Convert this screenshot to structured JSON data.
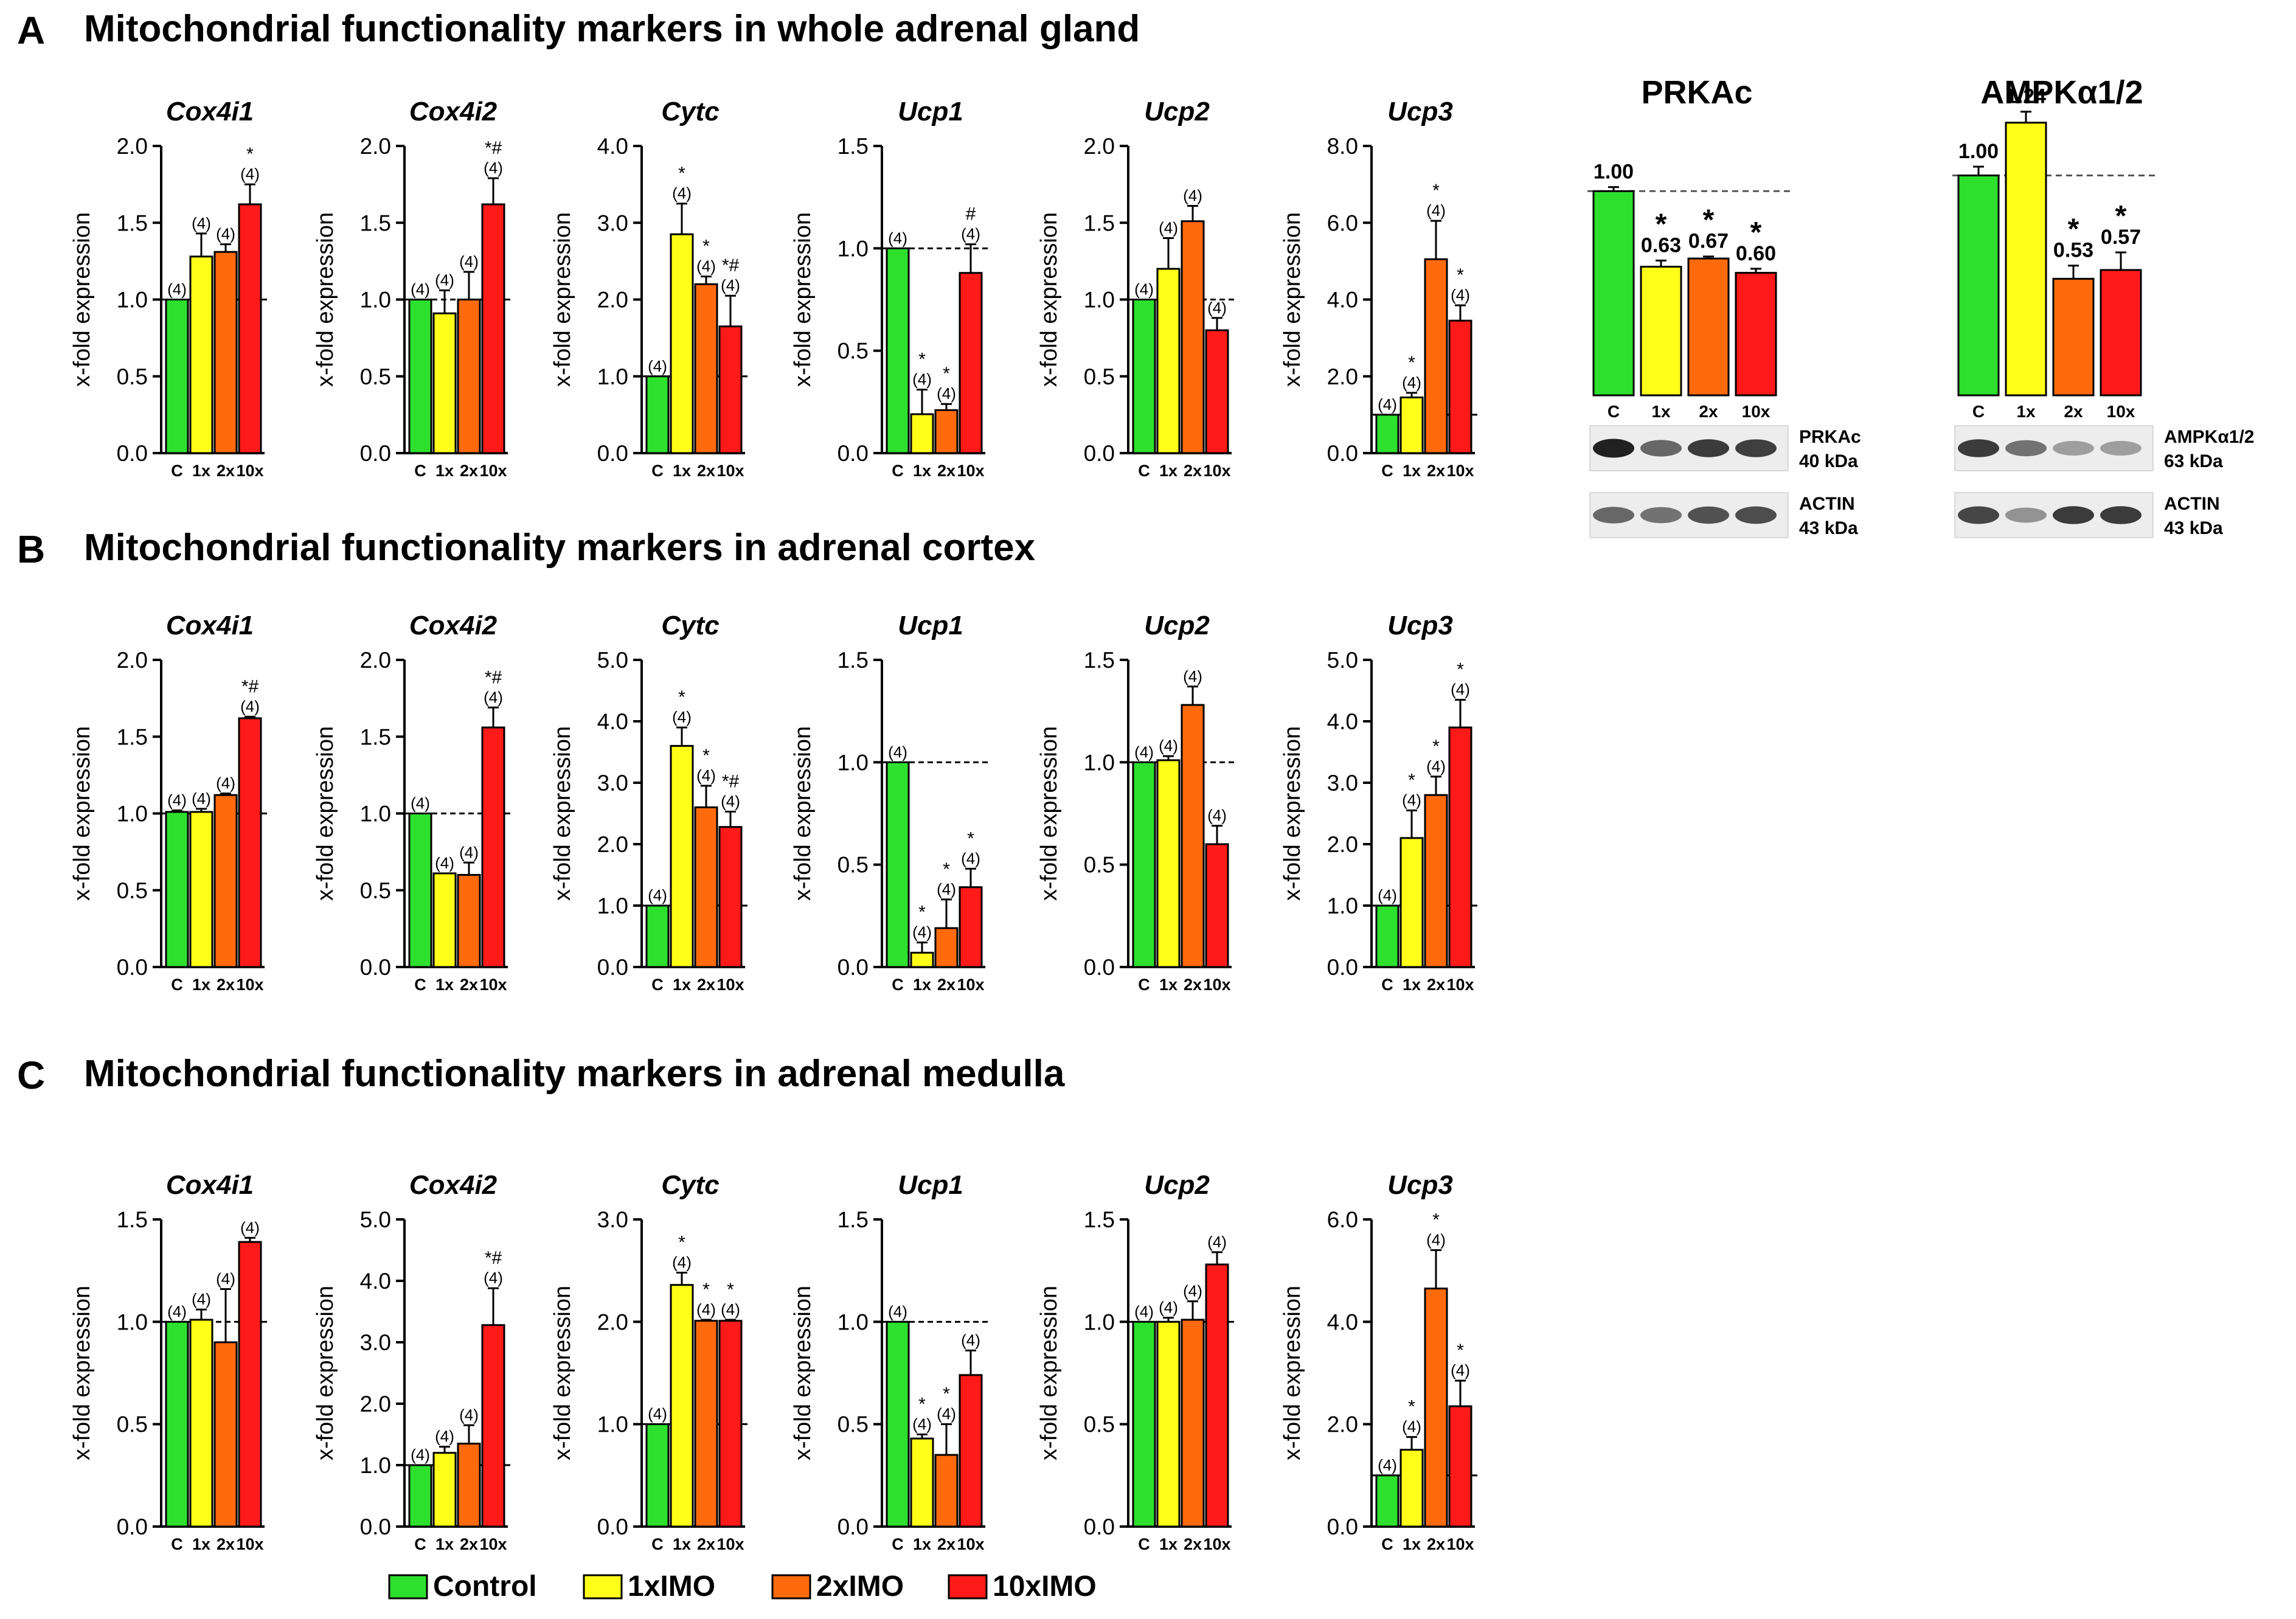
{
  "colors": {
    "C": "#2ee02e",
    "1x": "#ffff1a",
    "2x": "#ff6a0d",
    "10x": "#ff1a1a"
  },
  "sections": [
    {
      "letter": "A",
      "title": "Mitochondrial functionality markers in whole adrenal gland"
    },
    {
      "letter": "B",
      "title": "Mitochondrial functionality markers in adrenal cortex"
    },
    {
      "letter": "C",
      "title": "Mitochondrial functionality markers in adrenal medulla"
    }
  ],
  "legend": [
    {
      "label": "Control",
      "key": "C"
    },
    {
      "label": "1xIMO",
      "key": "1x"
    },
    {
      "label": "2xIMO",
      "key": "2x"
    },
    {
      "label": "10xIMO",
      "key": "10x"
    }
  ],
  "chart_data": [
    {
      "section": "A",
      "type": "bar",
      "title": "Cox4i1",
      "ylabel": "x-fold expression",
      "categories": [
        "C",
        "1x",
        "2x",
        "10x"
      ],
      "values": [
        1.0,
        1.28,
        1.31,
        1.62
      ],
      "errors": [
        0.0,
        0.15,
        0.05,
        0.13
      ],
      "n": [
        "(4)",
        "(4)",
        "(4)",
        "(4)"
      ],
      "marks": [
        "",
        "",
        "",
        "*"
      ],
      "ylim": [
        0,
        2
      ],
      "ticks": [
        "0.0",
        "0.5",
        "1.0",
        "1.5",
        "2.0"
      ],
      "reference": 1.0
    },
    {
      "section": "A",
      "type": "bar",
      "title": "Cox4i2",
      "ylabel": "x-fold expression",
      "categories": [
        "C",
        "1x",
        "2x",
        "10x"
      ],
      "values": [
        1.0,
        0.91,
        1.0,
        1.62
      ],
      "errors": [
        0.0,
        0.15,
        0.18,
        0.17
      ],
      "n": [
        "(4)",
        "(4)",
        "(4)",
        "(4)"
      ],
      "marks": [
        "",
        "",
        "",
        "*#"
      ],
      "ylim": [
        0,
        2
      ],
      "ticks": [
        "0.0",
        "0.5",
        "1.0",
        "1.5",
        "2.0"
      ],
      "reference": 1.0
    },
    {
      "section": "A",
      "type": "bar",
      "title": "Cytc",
      "ylabel": "x-fold expression",
      "categories": [
        "C",
        "1x",
        "2x",
        "10x"
      ],
      "values": [
        1.0,
        2.85,
        2.2,
        1.65
      ],
      "errors": [
        0.0,
        0.4,
        0.1,
        0.4
      ],
      "n": [
        "(4)",
        "(4)",
        "(4)",
        "(4)"
      ],
      "marks": [
        "",
        "*",
        "*",
        "*#"
      ],
      "ylim": [
        0,
        4
      ],
      "ticks": [
        "0.0",
        "1.0",
        "2.0",
        "3.0",
        "4.0"
      ],
      "reference": 1.0
    },
    {
      "section": "A",
      "type": "bar",
      "title": "Ucp1",
      "ylabel": "x-fold expression",
      "categories": [
        "C",
        "1x",
        "2x",
        "10x"
      ],
      "values": [
        1.0,
        0.19,
        0.21,
        0.88
      ],
      "errors": [
        0.0,
        0.12,
        0.03,
        0.14
      ],
      "n": [
        "(4)",
        "(4)",
        "(4)",
        "(4)"
      ],
      "marks": [
        "",
        "*",
        "*",
        "#"
      ],
      "ylim": [
        0,
        1.5
      ],
      "ticks": [
        "0.0",
        "0.5",
        "1.0",
        "1.5"
      ],
      "reference": 1.0
    },
    {
      "section": "A",
      "type": "bar",
      "title": "Ucp2",
      "ylabel": "x-fold expression",
      "categories": [
        "C",
        "1x",
        "2x",
        "10x"
      ],
      "values": [
        1.0,
        1.2,
        1.51,
        0.8
      ],
      "errors": [
        0.0,
        0.2,
        0.1,
        0.08
      ],
      "n": [
        "(4)",
        "(4)",
        "(4)",
        "(4)"
      ],
      "marks": [
        "",
        "",
        "",
        ""
      ],
      "ylim": [
        0,
        2
      ],
      "ticks": [
        "0.0",
        "0.5",
        "1.0",
        "1.5",
        "2.0"
      ],
      "reference": 1.0
    },
    {
      "section": "A",
      "type": "bar",
      "title": "Ucp3",
      "ylabel": "x-fold expression",
      "categories": [
        "C",
        "1x",
        "2x",
        "10x"
      ],
      "values": [
        1.0,
        1.45,
        5.05,
        3.45
      ],
      "errors": [
        0.0,
        0.12,
        1.0,
        0.4
      ],
      "n": [
        "(4)",
        "(4)",
        "(4)",
        "(4)"
      ],
      "marks": [
        "",
        "*",
        "*",
        "*"
      ],
      "ylim": [
        0,
        8
      ],
      "ticks": [
        "0.0",
        "2.0",
        "4.0",
        "6.0",
        "8.0"
      ],
      "reference": 1.0
    },
    {
      "section": "B",
      "type": "bar",
      "title": "Cox4i1",
      "ylabel": "x-fold expression",
      "categories": [
        "C",
        "1x",
        "2x",
        "10x"
      ],
      "values": [
        1.01,
        1.01,
        1.12,
        1.62
      ],
      "errors": [
        0.01,
        0.02,
        0.01,
        0.01
      ],
      "n": [
        "(4)",
        "(4)",
        "(4)",
        "(4)"
      ],
      "marks": [
        "",
        "",
        "",
        "*#"
      ],
      "ylim": [
        0,
        2
      ],
      "ticks": [
        "0.0",
        "0.5",
        "1.0",
        "1.5",
        "2.0"
      ],
      "reference": 1.0
    },
    {
      "section": "B",
      "type": "bar",
      "title": "Cox4i2",
      "ylabel": "x-fold expression",
      "categories": [
        "C",
        "1x",
        "2x",
        "10x"
      ],
      "values": [
        1.0,
        0.61,
        0.6,
        1.56
      ],
      "errors": [
        0.0,
        0.0,
        0.08,
        0.13
      ],
      "n": [
        "(4)",
        "(4)",
        "(4)",
        "(4)"
      ],
      "marks": [
        "",
        "",
        "",
        "*#"
      ],
      "ylim": [
        0,
        2
      ],
      "ticks": [
        "0.0",
        "0.5",
        "1.0",
        "1.5",
        "2.0"
      ],
      "reference": 1.0
    },
    {
      "section": "B",
      "type": "bar",
      "title": "Cytc",
      "ylabel": "x-fold expression",
      "categories": [
        "C",
        "1x",
        "2x",
        "10x"
      ],
      "values": [
        1.0,
        3.6,
        2.6,
        2.28
      ],
      "errors": [
        0.0,
        0.3,
        0.35,
        0.25
      ],
      "n": [
        "(4)",
        "(4)",
        "(4)",
        "(4)"
      ],
      "marks": [
        "",
        "*",
        "*",
        "*#"
      ],
      "ylim": [
        0,
        5
      ],
      "ticks": [
        "0.0",
        "1.0",
        "2.0",
        "3.0",
        "4.0",
        "5.0"
      ],
      "reference": 1.0
    },
    {
      "section": "B",
      "type": "bar",
      "title": "Ucp1",
      "ylabel": "x-fold expression",
      "categories": [
        "C",
        "1x",
        "2x",
        "10x"
      ],
      "values": [
        1.0,
        0.07,
        0.19,
        0.39
      ],
      "errors": [
        0.0,
        0.05,
        0.14,
        0.09
      ],
      "n": [
        "(4)",
        "(4)",
        "(4)",
        "(4)"
      ],
      "marks": [
        "",
        "*",
        "*",
        "*"
      ],
      "ylim": [
        0,
        1.5
      ],
      "ticks": [
        "0.0",
        "0.5",
        "1.0",
        "1.5"
      ],
      "reference": 1.0
    },
    {
      "section": "B",
      "type": "bar",
      "title": "Ucp2",
      "ylabel": "x-fold expression",
      "categories": [
        "C",
        "1x",
        "2x",
        "10x"
      ],
      "values": [
        1.0,
        1.01,
        1.28,
        0.6
      ],
      "errors": [
        0.0,
        0.02,
        0.09,
        0.09
      ],
      "n": [
        "(4)",
        "(4)",
        "(4)",
        "(4)"
      ],
      "marks": [
        "",
        "",
        "",
        ""
      ],
      "ylim": [
        0,
        1.5
      ],
      "ticks": [
        "0.0",
        "0.5",
        "1.0",
        "1.5"
      ],
      "reference": 1.0
    },
    {
      "section": "B",
      "type": "bar",
      "title": "Ucp3",
      "ylabel": "x-fold expression",
      "categories": [
        "C",
        "1x",
        "2x",
        "10x"
      ],
      "values": [
        1.0,
        2.1,
        2.8,
        3.9
      ],
      "errors": [
        0.0,
        0.45,
        0.3,
        0.45
      ],
      "n": [
        "(4)",
        "(4)",
        "(4)",
        "(4)"
      ],
      "marks": [
        "",
        "*",
        "*",
        "*"
      ],
      "ylim": [
        0,
        5
      ],
      "ticks": [
        "0.0",
        "1.0",
        "2.0",
        "3.0",
        "4.0",
        "5.0"
      ],
      "reference": 1.0
    },
    {
      "section": "C",
      "type": "bar",
      "title": "Cox4i1",
      "ylabel": "x-fold expression",
      "categories": [
        "C",
        "1x",
        "2x",
        "10x"
      ],
      "values": [
        1.0,
        1.01,
        0.9,
        1.39
      ],
      "errors": [
        0.0,
        0.05,
        0.26,
        0.02
      ],
      "n": [
        "(4)",
        "(4)",
        "(4)",
        "(4)"
      ],
      "marks": [
        "",
        "",
        "",
        ""
      ],
      "ylim": [
        0,
        1.5
      ],
      "ticks": [
        "0.0",
        "0.5",
        "1.0",
        "1.5"
      ],
      "reference": 1.0
    },
    {
      "section": "C",
      "type": "bar",
      "title": "Cox4i2",
      "ylabel": "x-fold expression",
      "categories": [
        "C",
        "1x",
        "2x",
        "10x"
      ],
      "values": [
        1.0,
        1.2,
        1.35,
        3.28
      ],
      "errors": [
        0.0,
        0.1,
        0.3,
        0.6
      ],
      "n": [
        "(4)",
        "(4)",
        "(4)",
        "(4)"
      ],
      "marks": [
        "",
        "",
        "",
        "*#"
      ],
      "ylim": [
        0,
        5
      ],
      "ticks": [
        "0.0",
        "1.0",
        "2.0",
        "3.0",
        "4.0",
        "5.0"
      ],
      "reference": 1.0
    },
    {
      "section": "C",
      "type": "bar",
      "title": "Cytc",
      "ylabel": "x-fold expression",
      "categories": [
        "C",
        "1x",
        "2x",
        "10x"
      ],
      "values": [
        1.0,
        2.36,
        2.01,
        2.01
      ],
      "errors": [
        0.0,
        0.12,
        0.01,
        0.01
      ],
      "n": [
        "(4)",
        "(4)",
        "(4)",
        "(4)"
      ],
      "marks": [
        "",
        "*",
        "*",
        "*"
      ],
      "ylim": [
        0,
        3
      ],
      "ticks": [
        "0.0",
        "1.0",
        "2.0",
        "3.0"
      ],
      "reference": 1.0
    },
    {
      "section": "C",
      "type": "bar",
      "title": "Ucp1",
      "ylabel": "x-fold expression",
      "categories": [
        "C",
        "1x",
        "2x",
        "10x"
      ],
      "values": [
        1.0,
        0.43,
        0.35,
        0.74
      ],
      "errors": [
        0.0,
        0.02,
        0.15,
        0.12
      ],
      "n": [
        "(4)",
        "(4)",
        "(4)",
        "(4)"
      ],
      "marks": [
        "",
        "*",
        "*",
        ""
      ],
      "ylim": [
        0,
        1.5
      ],
      "ticks": [
        "0.0",
        "0.5",
        "1.0",
        "1.5"
      ],
      "reference": 1.0
    },
    {
      "section": "C",
      "type": "bar",
      "title": "Ucp2",
      "ylabel": "x-fold expression",
      "categories": [
        "C",
        "1x",
        "2x",
        "10x"
      ],
      "values": [
        1.0,
        1.0,
        1.01,
        1.28
      ],
      "errors": [
        0.0,
        0.02,
        0.09,
        0.06
      ],
      "n": [
        "(4)",
        "(4)",
        "(4)",
        "(4)"
      ],
      "marks": [
        "",
        "",
        "",
        ""
      ],
      "ylim": [
        0,
        1.5
      ],
      "ticks": [
        "0.0",
        "0.5",
        "1.0",
        "1.5"
      ],
      "reference": 1.0
    },
    {
      "section": "C",
      "type": "bar",
      "title": "Ucp3",
      "ylabel": "x-fold expression",
      "categories": [
        "C",
        "1x",
        "2x",
        "10x"
      ],
      "values": [
        1.0,
        1.5,
        4.65,
        2.35
      ],
      "errors": [
        0.0,
        0.25,
        0.75,
        0.5
      ],
      "n": [
        "(4)",
        "(4)",
        "(4)",
        "(4)"
      ],
      "marks": [
        "",
        "*",
        "*",
        "*"
      ],
      "ylim": [
        0,
        6
      ],
      "ticks": [
        "0.0",
        "2.0",
        "4.0",
        "6.0"
      ],
      "reference": 1.0
    }
  ],
  "western_blots": [
    {
      "title": "PRKAc",
      "categories": [
        "C",
        "1x",
        "2x",
        "10x"
      ],
      "values": [
        1.0,
        0.63,
        0.67,
        0.6
      ],
      "value_labels": [
        "1.00",
        "0.63",
        "0.67",
        "0.60"
      ],
      "marks": [
        "",
        "*",
        "*",
        "*"
      ],
      "errors": [
        0.02,
        0.03,
        0.01,
        0.02
      ],
      "ylim": [
        0,
        1.4
      ],
      "reference": 1.0,
      "bands": [
        {
          "name": "PRKAc",
          "size": "40 kDa",
          "intensity": [
            0.92,
            0.6,
            0.8,
            0.78
          ]
        },
        {
          "name": "ACTIN",
          "size": "43 kDa",
          "intensity": [
            0.6,
            0.55,
            0.7,
            0.72
          ]
        }
      ]
    },
    {
      "title": "AMPKα1/2",
      "categories": [
        "C",
        "1x",
        "2x",
        "10x"
      ],
      "values": [
        1.0,
        1.24,
        0.53,
        0.57
      ],
      "value_labels": [
        "1.00",
        "1.24",
        "0.53",
        "0.57"
      ],
      "marks": [
        "",
        "",
        "*",
        "*"
      ],
      "errors": [
        0.04,
        0.05,
        0.06,
        0.08
      ],
      "ylim": [
        0,
        1.3
      ],
      "reference": 1.0,
      "bands": [
        {
          "name": "AMPKα1/2",
          "size": "63 kDa",
          "intensity": [
            0.8,
            0.55,
            0.35,
            0.35
          ]
        },
        {
          "name": "ACTIN",
          "size": "43 kDa",
          "intensity": [
            0.75,
            0.4,
            0.8,
            0.8
          ]
        }
      ]
    }
  ]
}
